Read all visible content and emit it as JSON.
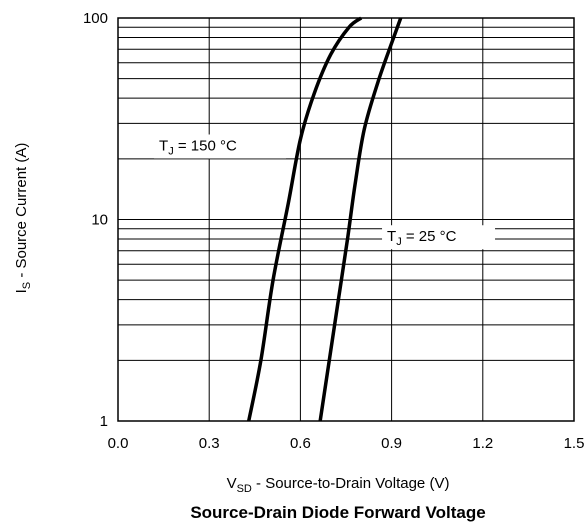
{
  "chart_data": {
    "type": "line",
    "title": "Source-Drain Diode Forward Voltage",
    "xlabel": {
      "main": "V",
      "sub": "SD",
      "rest": " - Source-to-Drain Voltage (V)"
    },
    "ylabel": {
      "main": "I",
      "sub": "S",
      "rest": " - Source Current (A)"
    },
    "xlim": [
      0.0,
      1.5
    ],
    "ylim": [
      1,
      100
    ],
    "yscale": "log",
    "grid": true,
    "x_ticks": [
      "0.0",
      "0.3",
      "0.6",
      "0.9",
      "1.2",
      "1.5"
    ],
    "y_ticks": [
      "1",
      "10",
      "100"
    ],
    "series": [
      {
        "label": {
          "main": "T",
          "sub": "J",
          "rest": " = 150 °C"
        },
        "x": [
          0.43,
          0.47,
          0.51,
          0.56,
          0.6,
          0.645,
          0.7,
          0.76,
          0.8
        ],
        "y": [
          1,
          2,
          5,
          12,
          25,
          42,
          66,
          90,
          100
        ]
      },
      {
        "label": {
          "main": "T",
          "sub": "J",
          "rest": " = 25 °C"
        },
        "x": [
          0.665,
          0.695,
          0.725,
          0.755,
          0.78,
          0.81,
          0.855,
          0.9,
          0.93
        ],
        "y": [
          1,
          2,
          4,
          8,
          15,
          28,
          48,
          75,
          100
        ]
      }
    ]
  }
}
